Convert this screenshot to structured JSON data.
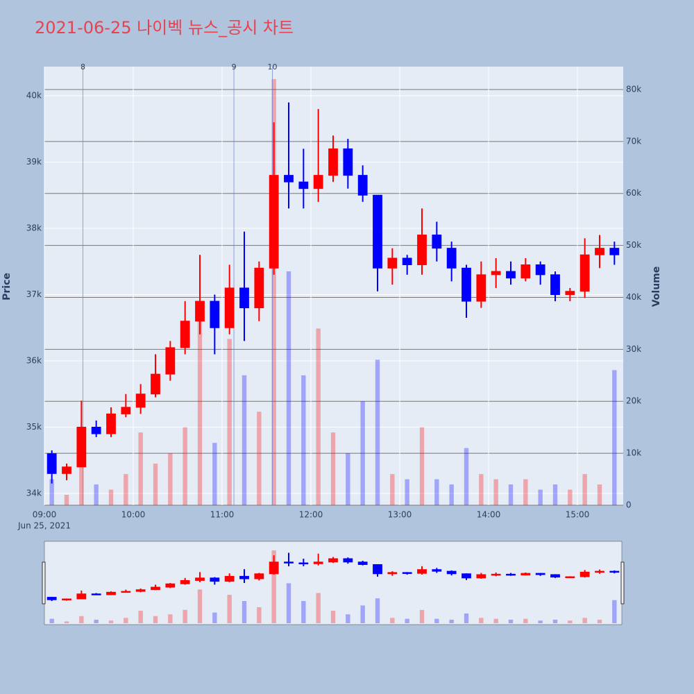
{
  "chart_data": {
    "type": "candlestick",
    "title": "2021-06-25 나이벡 뉴스_공시 차트",
    "y_title": "Price",
    "y2_title": "Volume",
    "x": [
      "09:00",
      "09:10",
      "09:20",
      "09:30",
      "09:40",
      "09:50",
      "10:00",
      "10:10",
      "10:20",
      "10:30",
      "10:40",
      "10:50",
      "11:00",
      "11:10",
      "11:20",
      "11:30",
      "11:40",
      "11:50",
      "12:00",
      "12:10",
      "12:20",
      "12:30",
      "12:40",
      "12:50",
      "13:00",
      "13:10",
      "13:20",
      "13:30",
      "13:40",
      "13:50",
      "14:00",
      "14:10",
      "14:20",
      "14:30",
      "14:40",
      "14:50",
      "15:00",
      "15:10",
      "15:20"
    ],
    "open": [
      34600,
      34300,
      34400,
      35000,
      34900,
      35200,
      35300,
      35500,
      35800,
      36200,
      36600,
      36900,
      36500,
      37100,
      36800,
      37400,
      38800,
      38700,
      38600,
      38800,
      39200,
      38800,
      38500,
      37400,
      37550,
      37450,
      37900,
      37700,
      37400,
      36900,
      37300,
      37350,
      37250,
      37450,
      37300,
      37000,
      37050,
      37600,
      37700
    ],
    "high": [
      34650,
      34450,
      35400,
      35100,
      35300,
      35500,
      35650,
      36100,
      36300,
      36900,
      37600,
      37000,
      37450,
      37950,
      37500,
      39600,
      39900,
      39200,
      39800,
      39400,
      39350,
      38950,
      38500,
      37700,
      37600,
      38300,
      38100,
      37800,
      37450,
      37500,
      37550,
      37500,
      37550,
      37500,
      37350,
      37100,
      37850,
      37900,
      37800
    ],
    "low": [
      34150,
      34200,
      34400,
      34850,
      34850,
      35150,
      35200,
      35450,
      35700,
      36100,
      36400,
      36100,
      36400,
      36300,
      36600,
      37300,
      38300,
      38300,
      38400,
      38700,
      38600,
      38400,
      37050,
      37150,
      37300,
      37300,
      37500,
      37200,
      36650,
      36800,
      37100,
      37150,
      37200,
      37150,
      36900,
      36900,
      36950,
      37400,
      37450
    ],
    "close": [
      34300,
      34400,
      35000,
      34900,
      35200,
      35300,
      35500,
      35800,
      36200,
      36600,
      36900,
      36500,
      37100,
      36800,
      37400,
      38800,
      38700,
      38600,
      38800,
      39200,
      38800,
      38500,
      37400,
      37550,
      37450,
      37900,
      37700,
      37400,
      36900,
      37300,
      37350,
      37250,
      37450,
      37300,
      37000,
      37050,
      37600,
      37700,
      37600
    ],
    "volume": [
      5000,
      2000,
      8000,
      4000,
      3000,
      6000,
      14000,
      8000,
      10000,
      15000,
      38000,
      12000,
      32000,
      25000,
      18000,
      82000,
      45000,
      25000,
      34000,
      14000,
      10000,
      20000,
      28000,
      6000,
      5000,
      15000,
      5000,
      4000,
      11000,
      6000,
      5000,
      4000,
      5000,
      3000,
      4000,
      3000,
      6000,
      4000,
      26000
    ],
    "increasing_color": "#ff0000",
    "decreasing_color": "#0000ff",
    "news": [
      {
        "x": "09:26",
        "label": "8"
      },
      {
        "x": "11:08",
        "label": "9"
      },
      {
        "x": "11:34",
        "label": "10"
      }
    ],
    "xlim": [
      "09:00",
      "15:30"
    ],
    "xticks": [
      "09:00",
      "10:00",
      "11:00",
      "12:00",
      "13:00",
      "14:00",
      "15:00"
    ],
    "x_date_label": "Jun 25, 2021",
    "ylim": [
      33822,
      40440
    ],
    "yticks": [
      {
        "value": 34000,
        "label": "34k"
      },
      {
        "value": 35000,
        "label": "35k"
      },
      {
        "value": 36000,
        "label": "36k"
      },
      {
        "value": 37000,
        "label": "37k"
      },
      {
        "value": 38000,
        "label": "38k"
      },
      {
        "value": 39000,
        "label": "39k"
      },
      {
        "value": 40000,
        "label": "40k"
      }
    ],
    "y2lim": [
      0,
      84400
    ],
    "y2ticks": [
      0,
      {
        "value": 10000,
        "label": "10k"
      },
      {
        "value": 20000,
        "label": "20k"
      },
      {
        "value": 30000,
        "label": "30k"
      },
      {
        "value": 40000,
        "label": "40k"
      },
      {
        "value": 50000,
        "label": "50k"
      },
      {
        "value": 60000,
        "label": "60k"
      },
      {
        "value": 70000,
        "label": "70k"
      },
      {
        "value": 80000,
        "label": "80k"
      }
    ],
    "grid": true,
    "range_slider": true
  }
}
